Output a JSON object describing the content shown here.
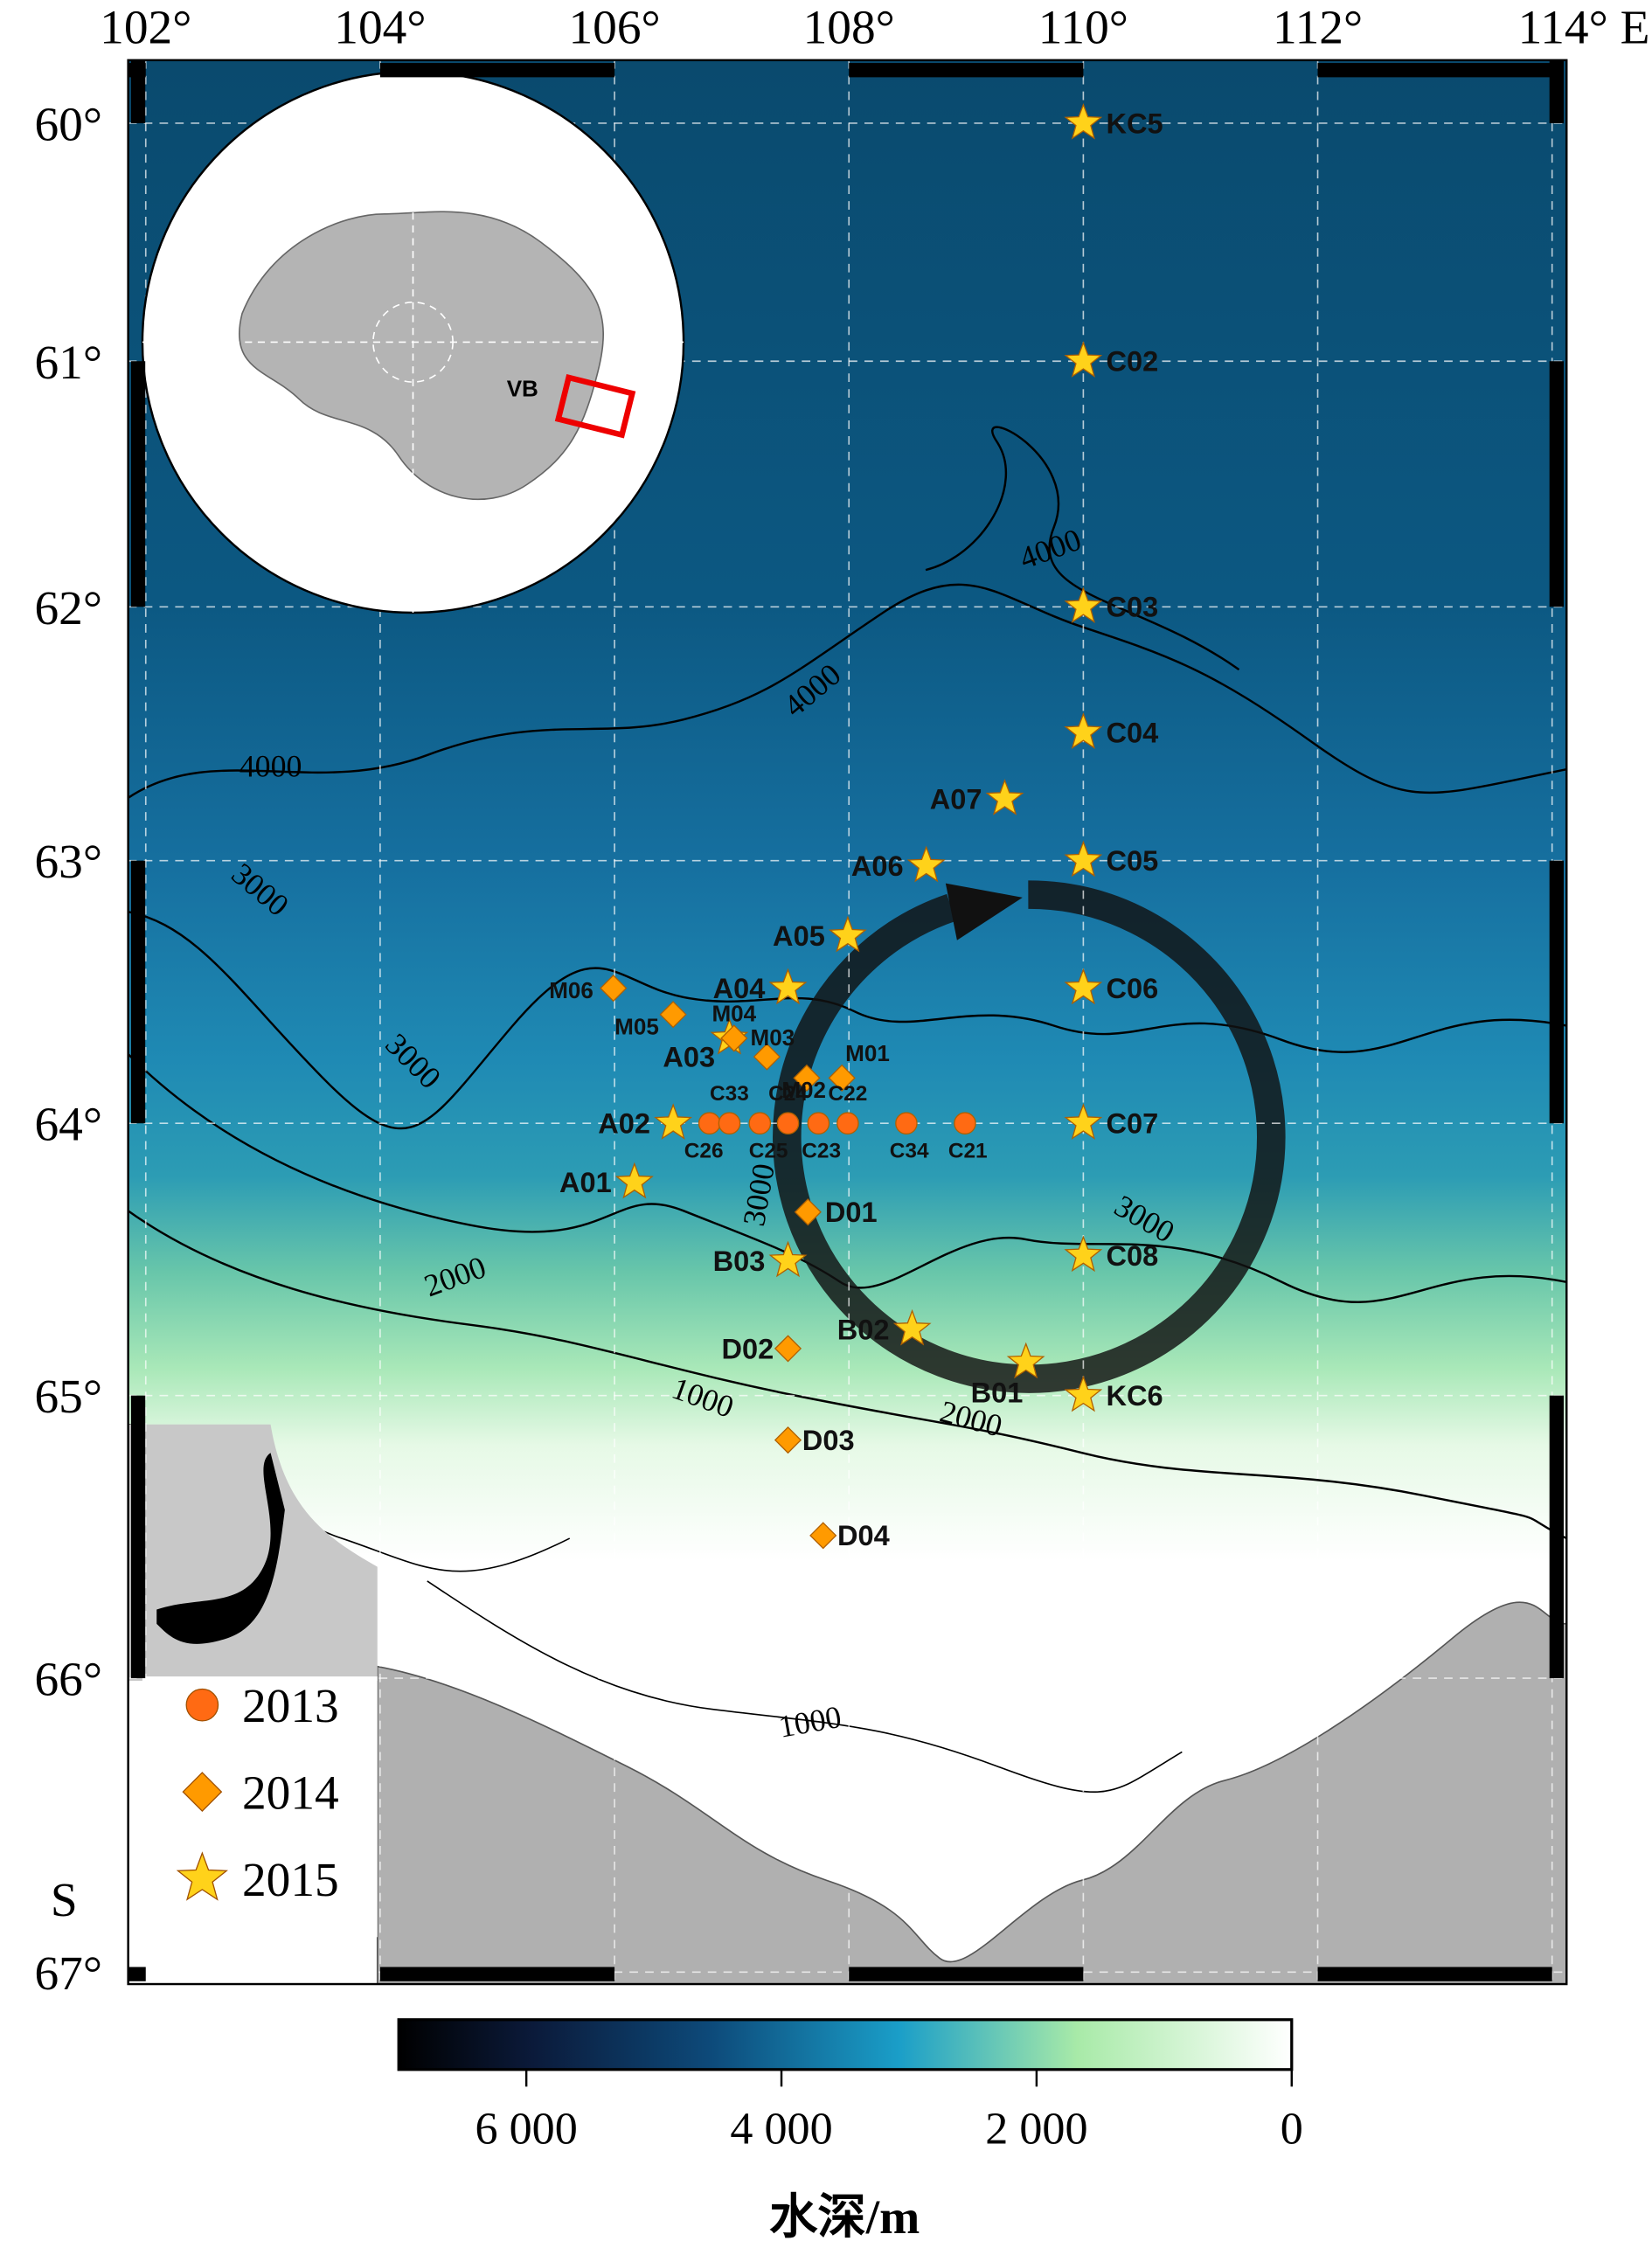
{
  "map": {
    "lonlim": [
      101.85,
      114.13
    ],
    "latlim": [
      59.73,
      67.05
    ],
    "lon_ticks": [
      {
        "value": 102,
        "label": "102°"
      },
      {
        "value": 104,
        "label": "104°"
      },
      {
        "value": 106,
        "label": "106°"
      },
      {
        "value": 108,
        "label": "108°"
      },
      {
        "value": 110,
        "label": "110°"
      },
      {
        "value": 112,
        "label": "112°"
      },
      {
        "value": 114,
        "label": "114° E"
      }
    ],
    "lat_ticks": [
      {
        "value": 60,
        "label": "60°"
      },
      {
        "value": 61,
        "label": "61°"
      },
      {
        "value": 62,
        "label": "62°"
      },
      {
        "value": 63,
        "label": "63°"
      },
      {
        "value": 64,
        "label": "64°"
      },
      {
        "value": 65,
        "label": "65°"
      },
      {
        "value": 66,
        "label": "66°"
      },
      {
        "value": 67,
        "label": "67°"
      }
    ],
    "lat_hemisphere": "S",
    "legend": [
      {
        "year": 2013,
        "color": "#ff6a13",
        "shape": "circle"
      },
      {
        "year": 2014,
        "color": "#ff9a00",
        "shape": "diamond"
      },
      {
        "year": 2015,
        "color": "#ffd21a",
        "shape": "star"
      }
    ],
    "stations": [
      {
        "label": "KC5",
        "lon": 110.0,
        "lat": 60.0,
        "year": 2015
      },
      {
        "label": "C02",
        "lon": 110.0,
        "lat": 61.0,
        "year": 2015
      },
      {
        "label": "C03",
        "lon": 110.0,
        "lat": 62.0,
        "year": 2015
      },
      {
        "label": "C04",
        "lon": 110.0,
        "lat": 62.5,
        "year": 2015
      },
      {
        "label": "A07",
        "lon": 109.33,
        "lat": 62.76,
        "year": 2015
      },
      {
        "label": "C05",
        "lon": 110.0,
        "lat": 63.0,
        "year": 2015
      },
      {
        "label": "A06",
        "lon": 108.66,
        "lat": 63.02,
        "year": 2015
      },
      {
        "label": "A05",
        "lon": 107.99,
        "lat": 63.29,
        "year": 2015
      },
      {
        "label": "A04",
        "lon": 107.48,
        "lat": 63.49,
        "year": 2015
      },
      {
        "label": "C06",
        "lon": 110.0,
        "lat": 63.49,
        "year": 2015
      },
      {
        "label": "A03",
        "lon": 106.98,
        "lat": 63.68,
        "year": 2015
      },
      {
        "label": "A02",
        "lon": 106.5,
        "lat": 64.0,
        "year": 2015
      },
      {
        "label": "C07",
        "lon": 110.0,
        "lat": 64.0,
        "year": 2015
      },
      {
        "label": "A01",
        "lon": 106.17,
        "lat": 64.22,
        "year": 2015
      },
      {
        "label": "B03",
        "lon": 107.48,
        "lat": 64.51,
        "year": 2015
      },
      {
        "label": "C08",
        "lon": 110.0,
        "lat": 64.49,
        "year": 2015
      },
      {
        "label": "B02",
        "lon": 108.54,
        "lat": 64.76,
        "year": 2015
      },
      {
        "label": "B01",
        "lon": 109.51,
        "lat": 64.88,
        "year": 2015
      },
      {
        "label": "KC6",
        "lon": 110.0,
        "lat": 65.0,
        "year": 2015
      },
      {
        "label": "M06",
        "lon": 105.99,
        "lat": 63.49,
        "year": 2014
      },
      {
        "label": "M05",
        "lon": 106.5,
        "lat": 63.59,
        "year": 2014
      },
      {
        "label": "M04",
        "lon": 107.02,
        "lat": 63.68,
        "year": 2014
      },
      {
        "label": "M03",
        "lon": 107.3,
        "lat": 63.75,
        "year": 2014
      },
      {
        "label": "M02",
        "lon": 107.64,
        "lat": 63.83,
        "year": 2014
      },
      {
        "label": "M01",
        "lon": 107.94,
        "lat": 63.83,
        "year": 2014
      },
      {
        "label": "D01",
        "lon": 107.65,
        "lat": 64.33,
        "year": 2014
      },
      {
        "label": "D02",
        "lon": 107.48,
        "lat": 64.83,
        "year": 2014
      },
      {
        "label": "D03",
        "lon": 107.48,
        "lat": 65.16,
        "year": 2014
      },
      {
        "label": "D04",
        "lon": 107.78,
        "lat": 65.5,
        "year": 2014
      },
      {
        "label": "C26",
        "lon": 106.81,
        "lat": 64.0,
        "year": 2013
      },
      {
        "label": "C33",
        "lon": 106.98,
        "lat": 64.0,
        "year": 2013
      },
      {
        "label": "C25",
        "lon": 107.24,
        "lat": 64.0,
        "year": 2013
      },
      {
        "label": "C24",
        "lon": 107.48,
        "lat": 64.0,
        "year": 2013
      },
      {
        "label": "C23",
        "lon": 107.74,
        "lat": 64.0,
        "year": 2013
      },
      {
        "label": "C22",
        "lon": 107.99,
        "lat": 64.0,
        "year": 2013
      },
      {
        "label": "C34",
        "lon": 108.49,
        "lat": 64.0,
        "year": 2013
      },
      {
        "label": "C21",
        "lon": 108.99,
        "lat": 64.0,
        "year": 2013
      }
    ],
    "contour_labels": [
      "4000",
      "4000",
      "4000",
      "3000",
      "3000",
      "3000",
      "3000",
      "2000",
      "2000",
      "1000",
      "1000"
    ],
    "inset_label": "VB",
    "colorbar": {
      "clim": [
        7000,
        0
      ],
      "ticks": [
        {
          "value": 6000,
          "label": "6 000"
        },
        {
          "value": 4000,
          "label": "4 000"
        },
        {
          "value": 2000,
          "label": "2 000"
        },
        0
      ],
      "title": "水深/m"
    }
  }
}
